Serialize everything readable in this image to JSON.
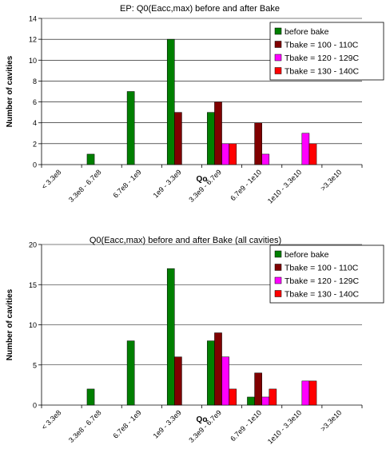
{
  "chart_data": [
    {
      "type": "bar",
      "title": "EP: Q0(Eacc,max) before and after Bake",
      "xlabel": "Qo",
      "ylabel": "Number of cavities",
      "ylim": [
        0,
        14
      ],
      "yticks": [
        0,
        2,
        4,
        6,
        8,
        10,
        12,
        14
      ],
      "grid": true,
      "legend": "top-right",
      "categories": [
        "< 3.3e8",
        "3.3e8 - 6.7e8",
        "6.7e8 - 1e9",
        "1e9 - 3.3e9",
        "3.3e9 - 6.7e9",
        "6.7e9 - 1e10",
        "1e10 - 3.3e10",
        ">3.3e10"
      ],
      "series": [
        {
          "name": "before bake",
          "color": "#007f00",
          "values": [
            0,
            1,
            7,
            12,
            5,
            0,
            0,
            0
          ]
        },
        {
          "name": "Tbake = 100 - 110C",
          "color": "#800000",
          "values": [
            0,
            0,
            0,
            5,
            6,
            4,
            0,
            0
          ]
        },
        {
          "name": "Tbake = 120 - 129C",
          "color": "#ff00ff",
          "values": [
            0,
            0,
            0,
            0,
            2,
            1,
            3,
            0
          ]
        },
        {
          "name": "Tbake = 130 - 140C",
          "color": "#ff0000",
          "values": [
            0,
            0,
            0,
            0,
            2,
            0,
            2,
            0
          ]
        }
      ]
    },
    {
      "type": "bar",
      "title": "Q0(Eacc,max) before and after Bake (all cavities)",
      "xlabel": "Qo",
      "ylabel": "Number of cavities",
      "ylim": [
        0,
        20
      ],
      "yticks": [
        0,
        5,
        10,
        15,
        20
      ],
      "grid": true,
      "legend": "top-right",
      "categories": [
        "< 3.3e8",
        "3.3e8 - 6.7e8",
        "6.7e8 - 1e9",
        "1e9 - 3.3e9",
        "3.3e9 - 6.7e9",
        "6.7e9 - 1e10",
        "1e10 - 3.3e10",
        ">3.3e10"
      ],
      "series": [
        {
          "name": "before bake",
          "color": "#007f00",
          "values": [
            0,
            2,
            8,
            17,
            8,
            1,
            0,
            0
          ]
        },
        {
          "name": "Tbake = 100 - 110C",
          "color": "#800000",
          "values": [
            0,
            0,
            0,
            6,
            9,
            4,
            0,
            0
          ]
        },
        {
          "name": "Tbake = 120 - 129C",
          "color": "#ff00ff",
          "values": [
            0,
            0,
            0,
            0,
            6,
            1,
            3,
            0
          ]
        },
        {
          "name": "Tbake = 130 - 140C",
          "color": "#ff0000",
          "values": [
            0,
            0,
            0,
            0,
            2,
            2,
            3,
            0
          ]
        }
      ]
    }
  ]
}
